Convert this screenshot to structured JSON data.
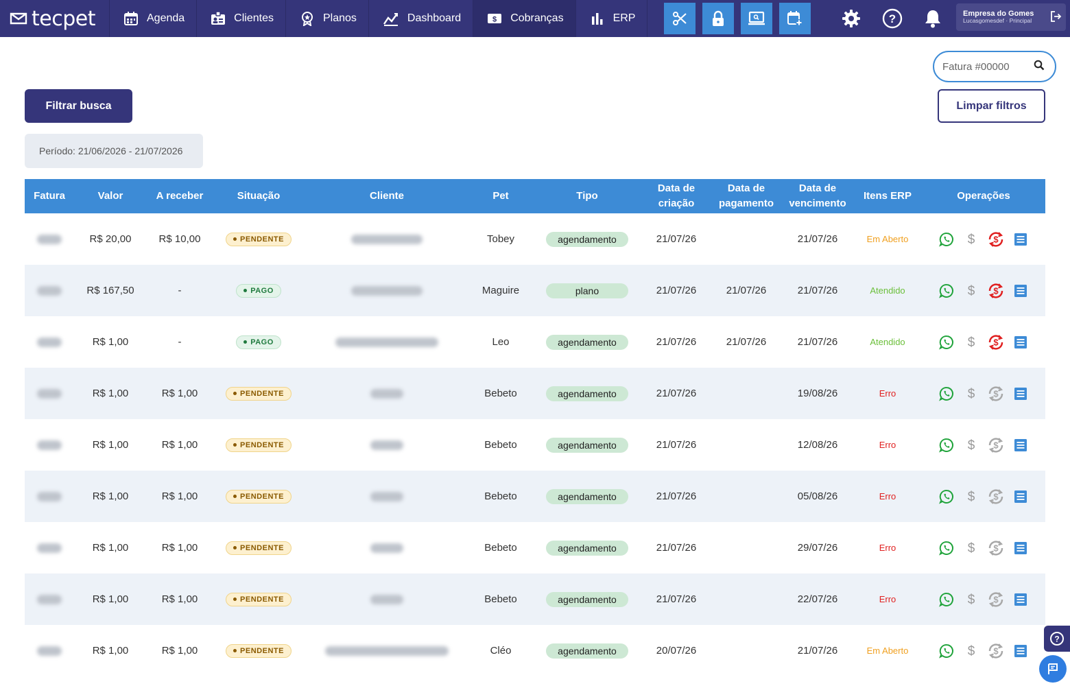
{
  "nav": {
    "logo": "tecpet",
    "items": [
      {
        "label": "Agenda",
        "icon": "calendar-icon"
      },
      {
        "label": "Clientes",
        "icon": "id-card-icon"
      },
      {
        "label": "Planos",
        "icon": "award-icon"
      },
      {
        "label": "Dashboard",
        "icon": "chart-line-icon"
      },
      {
        "label": "Cobranças",
        "icon": "dollar-bill-icon"
      },
      {
        "label": "ERP",
        "icon": "bar-chart-icon"
      }
    ],
    "active": "Cobranças",
    "quick_actions": [
      "scissors-icon",
      "lock-icon",
      "monitor-icon",
      "calendar-plus-icon"
    ],
    "utilities": [
      "gear-icon",
      "help-icon",
      "bell-icon"
    ],
    "company": {
      "name": "Empresa do Gomes",
      "sub": "Lucasgomesdef · Principal"
    }
  },
  "search": {
    "placeholder": "Fatura #00000"
  },
  "filter_button": "Filtrar busca",
  "clear_button": "Limpar filtros",
  "period": "Período: 21/06/2026 - 21/07/2026",
  "colors": {
    "navy": "#35357a",
    "blue": "#3d8bd6",
    "green": "#1fa33a",
    "red": "#e02020",
    "orange": "#f0a020"
  },
  "table": {
    "headers": [
      "Fatura",
      "Valor",
      "A receber",
      "Situação",
      "Cliente",
      "Pet",
      "Tipo",
      "Data de criação",
      "Data de pagamento",
      "Data de vencimento",
      "Itens ERP",
      "Operações"
    ],
    "rows": [
      {
        "valor": "R$ 20,00",
        "receber": "R$ 10,00",
        "situacao": "PENDENTE",
        "pet": "Tobey",
        "tipo": "agendamento",
        "criacao": "21/07/26",
        "pagamento": "",
        "vencimento": "21/07/26",
        "erp": "Em Aberto"
      },
      {
        "valor": "R$ 167,50",
        "receber": "-",
        "situacao": "PAGO",
        "pet": "Maguire",
        "tipo": "plano",
        "criacao": "21/07/26",
        "pagamento": "21/07/26",
        "vencimento": "21/07/26",
        "erp": "Atendido"
      },
      {
        "valor": "R$ 1,00",
        "receber": "-",
        "situacao": "PAGO",
        "pet": "Leo",
        "tipo": "agendamento",
        "criacao": "21/07/26",
        "pagamento": "21/07/26",
        "vencimento": "21/07/26",
        "erp": "Atendido"
      },
      {
        "valor": "R$ 1,00",
        "receber": "R$ 1,00",
        "situacao": "PENDENTE",
        "pet": "Bebeto",
        "tipo": "agendamento",
        "criacao": "21/07/26",
        "pagamento": "",
        "vencimento": "19/08/26",
        "erp": "Erro"
      },
      {
        "valor": "R$ 1,00",
        "receber": "R$ 1,00",
        "situacao": "PENDENTE",
        "pet": "Bebeto",
        "tipo": "agendamento",
        "criacao": "21/07/26",
        "pagamento": "",
        "vencimento": "12/08/26",
        "erp": "Erro"
      },
      {
        "valor": "R$ 1,00",
        "receber": "R$ 1,00",
        "situacao": "PENDENTE",
        "pet": "Bebeto",
        "tipo": "agendamento",
        "criacao": "21/07/26",
        "pagamento": "",
        "vencimento": "05/08/26",
        "erp": "Erro"
      },
      {
        "valor": "R$ 1,00",
        "receber": "R$ 1,00",
        "situacao": "PENDENTE",
        "pet": "Bebeto",
        "tipo": "agendamento",
        "criacao": "21/07/26",
        "pagamento": "",
        "vencimento": "29/07/26",
        "erp": "Erro"
      },
      {
        "valor": "R$ 1,00",
        "receber": "R$ 1,00",
        "situacao": "PENDENTE",
        "pet": "Bebeto",
        "tipo": "agendamento",
        "criacao": "21/07/26",
        "pagamento": "",
        "vencimento": "22/07/26",
        "erp": "Erro"
      },
      {
        "valor": "R$ 1,00",
        "receber": "R$ 1,00",
        "situacao": "PENDENTE",
        "pet": "Cléo",
        "tipo": "agendamento",
        "criacao": "20/07/26",
        "pagamento": "",
        "vencimento": "21/07/26",
        "erp": "Em Aberto"
      }
    ]
  }
}
